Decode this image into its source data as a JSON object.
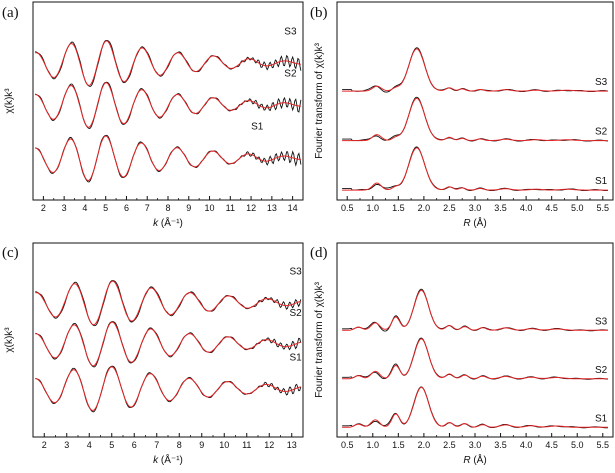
{
  "chart_data": [
    {
      "type": "line",
      "panel_label": "(a)",
      "ylabel": "χ(k)k³",
      "xlabel_italic": "k",
      "xlabel_rest": " (Å⁻¹)",
      "xlim": [
        1.5,
        14.5
      ],
      "xticks": [
        "2",
        "3",
        "4",
        "5",
        "6",
        "7",
        "8",
        "9",
        "10",
        "11",
        "12",
        "13",
        "14"
      ],
      "xtick_values": [
        2,
        3,
        4,
        5,
        6,
        7,
        8,
        9,
        10,
        11,
        12,
        13,
        14
      ],
      "series": [
        {
          "name": "S3",
          "offset": 2.0
        },
        {
          "name": "S2",
          "offset": 0.9
        },
        {
          "name": "S1",
          "offset": -0.5
        }
      ],
      "legend_colors": {
        "experiment": "#111111",
        "fit": "#e32424"
      }
    },
    {
      "type": "line",
      "panel_label": "(b)",
      "ylabel": "Fourier transform of χ(k)k³",
      "xlabel_italic": "R",
      "xlabel_rest": " (Å)",
      "xlim": [
        0.3,
        5.7
      ],
      "xticks": [
        "0.5",
        "1.0",
        "1.5",
        "2.0",
        "2.5",
        "3.0",
        "3.5",
        "4.0",
        "4.5",
        "5.0",
        "5.5"
      ],
      "xtick_values": [
        0.5,
        1.0,
        1.5,
        2.0,
        2.5,
        3.0,
        3.5,
        4.0,
        4.5,
        5.0,
        5.5
      ],
      "series": [
        {
          "name": "S3",
          "offset": 2.0
        },
        {
          "name": "S2",
          "offset": 1.0
        },
        {
          "name": "S1",
          "offset": 0.0
        }
      ]
    },
    {
      "type": "line",
      "panel_label": "(c)",
      "ylabel": "χ(k)k³",
      "xlabel_italic": "k",
      "xlabel_rest": " (Å⁻¹)",
      "xlim": [
        1.5,
        13.5
      ],
      "xticks": [
        "2",
        "3",
        "4",
        "5",
        "6",
        "7",
        "8",
        "9",
        "10",
        "11",
        "12",
        "13"
      ],
      "xtick_values": [
        2,
        3,
        4,
        5,
        6,
        7,
        8,
        9,
        10,
        11,
        12,
        13
      ],
      "series": [
        {
          "name": "S3",
          "offset": 2.0
        },
        {
          "name": "S2",
          "offset": 0.9
        },
        {
          "name": "S1",
          "offset": -0.3
        }
      ]
    },
    {
      "type": "line",
      "panel_label": "(d)",
      "ylabel": "Fourier transform of χ(k)k³",
      "xlabel_italic": "R",
      "xlabel_rest": " (Å)",
      "xlim": [
        0.3,
        5.7
      ],
      "xticks": [
        "0.5",
        "1.0",
        "1.5",
        "2.0",
        "2.5",
        "3.0",
        "3.5",
        "4.0",
        "4.5",
        "5.0",
        "5.5"
      ],
      "xtick_values": [
        0.5,
        1.0,
        1.5,
        2.0,
        2.5,
        3.0,
        3.5,
        4.0,
        4.5,
        5.0,
        5.5
      ],
      "series": [
        {
          "name": "S3",
          "offset": 2.0
        },
        {
          "name": "S2",
          "offset": 1.0
        },
        {
          "name": "S1",
          "offset": 0.0
        }
      ]
    }
  ]
}
